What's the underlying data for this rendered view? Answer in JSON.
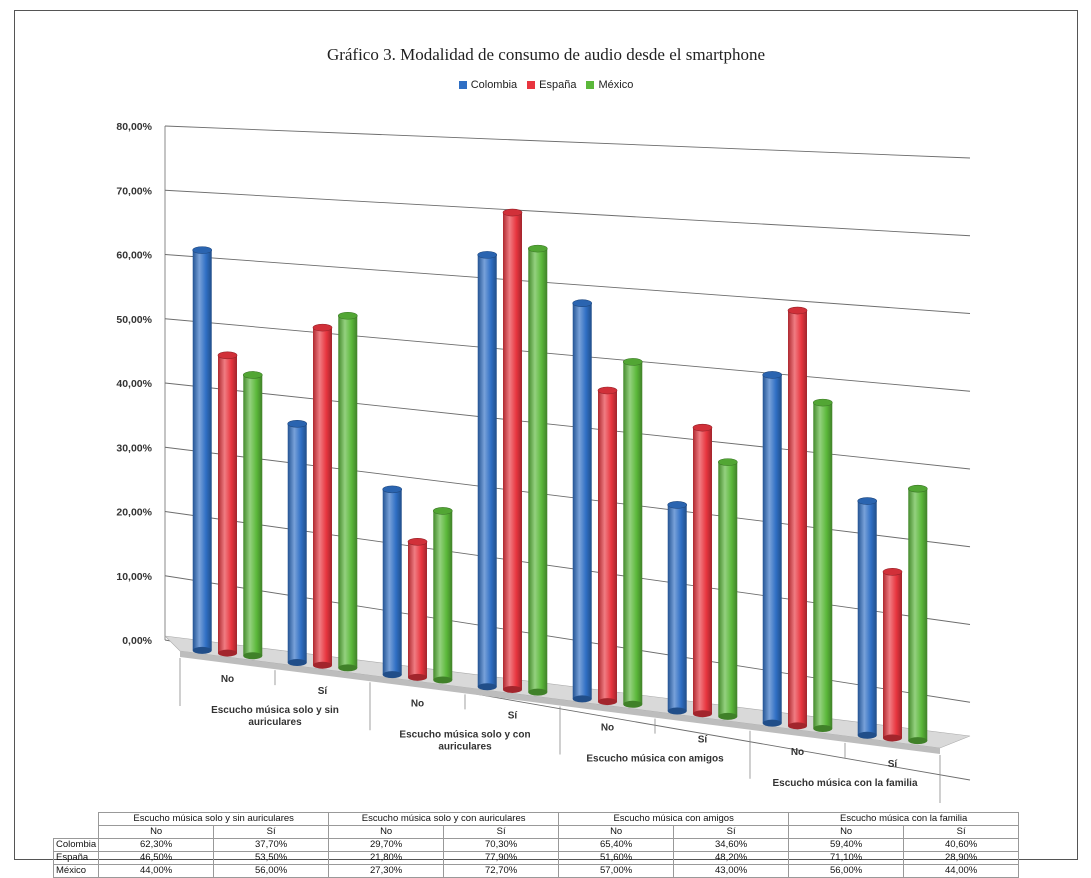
{
  "title": "Gráfico 3. Modalidad de consumo de audio desde el smartphone",
  "legend": [
    {
      "name": "Colombia",
      "color": "#2f6fc4"
    },
    {
      "name": "España",
      "color": "#e8353f"
    },
    {
      "name": "México",
      "color": "#5bb83a"
    }
  ],
  "chart_data": {
    "type": "bar",
    "title": "Gráfico 3. Modalidad de consumo de audio desde el smartphone",
    "groups": [
      "Escucho música solo y sin auriculares",
      "Escucho música solo y con auriculares",
      "Escucho música con amigos",
      "Escucho música con la familia"
    ],
    "group_labels_wrapped": [
      [
        "Escucho música solo y sin",
        "auriculares"
      ],
      [
        "Escucho música solo y con",
        "auriculares"
      ],
      [
        "Escucho música con amigos"
      ],
      [
        "Escucho música con la familia"
      ]
    ],
    "subcategories": [
      "No",
      "Sí"
    ],
    "categories": [
      "No",
      "Sí",
      "No",
      "Sí",
      "No",
      "Sí",
      "No",
      "Sí"
    ],
    "series": [
      {
        "name": "Colombia",
        "color": "#2f6fc4",
        "values": [
          62.3,
          37.7,
          29.7,
          70.3,
          65.4,
          34.6,
          59.4,
          40.6
        ]
      },
      {
        "name": "España",
        "color": "#e8353f",
        "values": [
          46.5,
          53.5,
          21.8,
          77.9,
          51.6,
          48.2,
          71.1,
          28.9
        ]
      },
      {
        "name": "México",
        "color": "#5bb83a",
        "values": [
          44.0,
          56.0,
          27.3,
          72.7,
          57.0,
          43.0,
          56.0,
          44.0
        ]
      }
    ],
    "ylim": [
      0,
      80
    ],
    "y_ticks": [
      "0,00%",
      "10,00%",
      "20,00%",
      "30,00%",
      "40,00%",
      "50,00%",
      "60,00%",
      "70,00%",
      "80,00%"
    ],
    "grid": true,
    "legend_position": "top"
  },
  "table": {
    "group_headers": [
      "Escucho música solo y sin auriculares",
      "Escucho música solo y con auriculares",
      "Escucho música con amigos",
      "Escucho música con la familia"
    ],
    "sub_headers": [
      "No",
      "Sí",
      "No",
      "Sí",
      "No",
      "Sí",
      "No",
      "Sí"
    ],
    "rows": [
      {
        "label": "Colombia",
        "cells": [
          "62,30%",
          "37,70%",
          "29,70%",
          "70,30%",
          "65,40%",
          "34,60%",
          "59,40%",
          "40,60%"
        ]
      },
      {
        "label": "España",
        "cells": [
          "46,50%",
          "53,50%",
          "21,80%",
          "77,90%",
          "51,60%",
          "48,20%",
          "71,10%",
          "28,90%"
        ]
      },
      {
        "label": "México",
        "cells": [
          "44,00%",
          "56,00%",
          "27,30%",
          "72,70%",
          "57,00%",
          "43,00%",
          "56,00%",
          "44,00%"
        ]
      }
    ]
  }
}
